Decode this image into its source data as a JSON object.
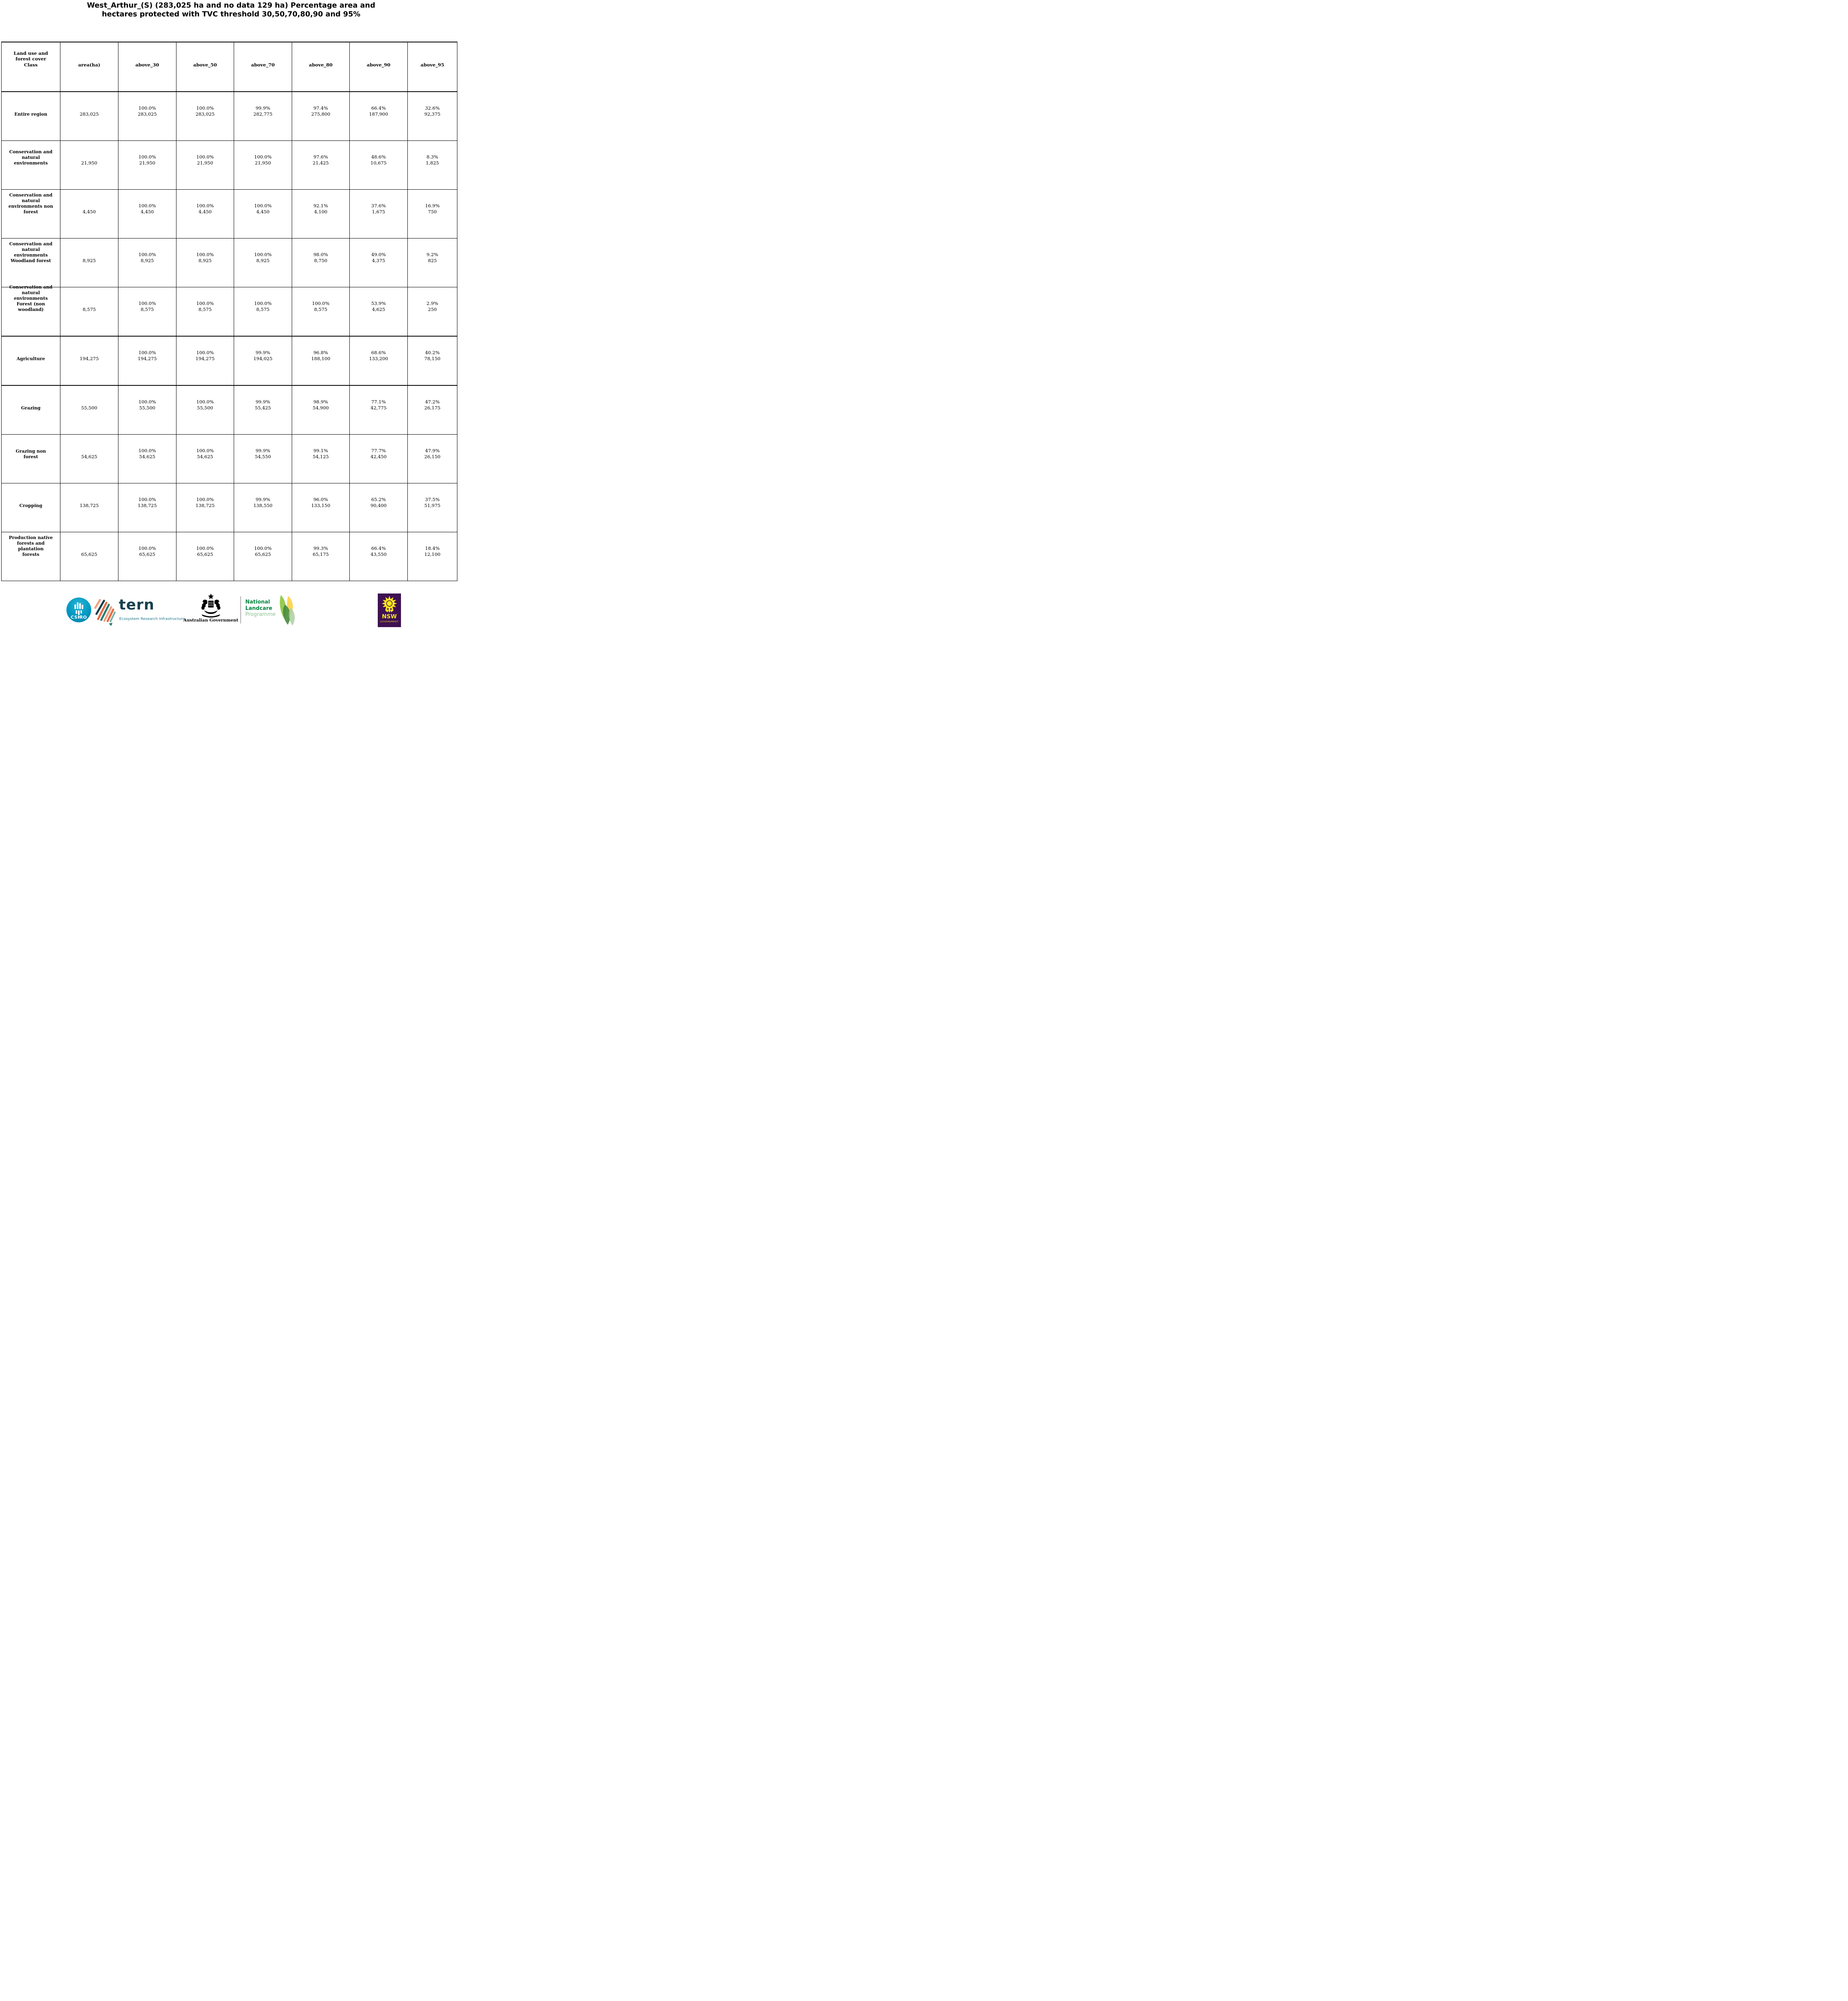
{
  "title": {
    "line1": "West_Arthur_(S) (283,025 ha and no data 129 ha) Percentage area and",
    "line2": "hectares protected with TVC threshold 30,50,70,80,90 and 95%"
  },
  "table": {
    "columns": [
      [
        "Land use and",
        "forest cover",
        "Class"
      ],
      [
        "area(ha)"
      ],
      [
        "above_30"
      ],
      [
        "above_50"
      ],
      [
        "above_70"
      ],
      [
        "above_80"
      ],
      [
        "above_90"
      ],
      [
        "above_95"
      ]
    ],
    "rows": [
      {
        "label": [
          "Entire region"
        ],
        "area": "283,025",
        "values": [
          [
            "100.0%",
            "283,025"
          ],
          [
            "100.0%",
            "283,025"
          ],
          [
            "99.9%",
            "282,775"
          ],
          [
            "97.4%",
            "275,800"
          ],
          [
            "66.4%",
            "187,900"
          ],
          [
            "32.6%",
            "92,375"
          ]
        ]
      },
      {
        "label": [
          "Conservation and",
          "natural",
          "environments"
        ],
        "area": "21,950",
        "values": [
          [
            "100.0%",
            "21,950"
          ],
          [
            "100.0%",
            "21,950"
          ],
          [
            "100.0%",
            "21,950"
          ],
          [
            "97.6%",
            "21,425"
          ],
          [
            "48.6%",
            "10,675"
          ],
          [
            "8.3%",
            "1,825"
          ]
        ]
      },
      {
        "label": [
          "Conservation and",
          "natural",
          "environments non",
          "forest"
        ],
        "area": "4,450",
        "values": [
          [
            "100.0%",
            "4,450"
          ],
          [
            "100.0%",
            "4,450"
          ],
          [
            "100.0%",
            "4,450"
          ],
          [
            "92.1%",
            "4,100"
          ],
          [
            "37.6%",
            "1,675"
          ],
          [
            "16.9%",
            "750"
          ]
        ]
      },
      {
        "label": [
          "Conservation and",
          "natural",
          "environments",
          "Woodland forest"
        ],
        "area": "8,925",
        "values": [
          [
            "100.0%",
            "8,925"
          ],
          [
            "100.0%",
            "8,925"
          ],
          [
            "100.0%",
            "8,925"
          ],
          [
            "98.0%",
            "8,750"
          ],
          [
            "49.0%",
            "4,375"
          ],
          [
            "9.2%",
            "825"
          ]
        ]
      },
      {
        "label": [
          "Conservation and",
          "natural",
          "environments",
          "Forest (non",
          "woodland)"
        ],
        "area": "8,575",
        "values": [
          [
            "100.0%",
            "8,575"
          ],
          [
            "100.0%",
            "8,575"
          ],
          [
            "100.0%",
            "8,575"
          ],
          [
            "100.0%",
            "8,575"
          ],
          [
            "53.9%",
            "4,625"
          ],
          [
            "2.9%",
            "250"
          ]
        ]
      },
      {
        "label": [
          "Agriculture"
        ],
        "area": "194,275",
        "values": [
          [
            "100.0%",
            "194,275"
          ],
          [
            "100.0%",
            "194,275"
          ],
          [
            "99.9%",
            "194,025"
          ],
          [
            "96.8%",
            "188,100"
          ],
          [
            "68.6%",
            "133,200"
          ],
          [
            "40.2%",
            "78,150"
          ]
        ]
      },
      {
        "label": [
          "Grazing"
        ],
        "area": "55,500",
        "values": [
          [
            "100.0%",
            "55,500"
          ],
          [
            "100.0%",
            "55,500"
          ],
          [
            "99.9%",
            "55,425"
          ],
          [
            "98.9%",
            "54,900"
          ],
          [
            "77.1%",
            "42,775"
          ],
          [
            "47.2%",
            "26,175"
          ]
        ]
      },
      {
        "label": [
          "Grazing non",
          "forest"
        ],
        "area": "54,625",
        "values": [
          [
            "100.0%",
            "54,625"
          ],
          [
            "100.0%",
            "54,625"
          ],
          [
            "99.9%",
            "54,550"
          ],
          [
            "99.1%",
            "54,125"
          ],
          [
            "77.7%",
            "42,450"
          ],
          [
            "47.9%",
            "26,150"
          ]
        ]
      },
      {
        "label": [
          "Cropping"
        ],
        "area": "138,725",
        "values": [
          [
            "100.0%",
            "138,725"
          ],
          [
            "100.0%",
            "138,725"
          ],
          [
            "99.9%",
            "138,550"
          ],
          [
            "96.0%",
            "133,150"
          ],
          [
            "65.2%",
            "90,400"
          ],
          [
            "37.5%",
            "51,975"
          ]
        ]
      },
      {
        "label": [
          "Production native",
          "forests and",
          "plantation",
          "forests"
        ],
        "area": "65,625",
        "values": [
          [
            "100.0%",
            "65,625"
          ],
          [
            "100.0%",
            "65,625"
          ],
          [
            "100.0%",
            "65,625"
          ],
          [
            "99.3%",
            "65,175"
          ],
          [
            "66.4%",
            "43,550"
          ],
          [
            "18.4%",
            "12,100"
          ]
        ]
      }
    ]
  },
  "footer": {
    "csiro_label": "CSIRO",
    "tern_label": "tern",
    "tern_sub": "Ecosystem Research Infrastructure",
    "augov_label": "Australian Government",
    "landcare_line1": "National",
    "landcare_line2": "Landcare",
    "landcare_line3": "Programme",
    "nsw_label": "NSW",
    "nsw_sub": "GOVERNMENT"
  },
  "colors": {
    "csiro_blue": "#0097c1",
    "tern_dark": "#16414f",
    "tern_teal": "#147085",
    "tern_orange": "#e96b41",
    "tern_salmon": "#f0a184",
    "tern_green": "#2a7d77",
    "landcare_green": "#00853e",
    "landcare_light": "#8cc63f",
    "landcare_yellow": "#ffd44d",
    "landcare_dark": "#468c3c",
    "landcare_sage": "#aecfa2",
    "nsw_purple": "#3e1152",
    "nsw_yellow": "#ffe71c"
  }
}
